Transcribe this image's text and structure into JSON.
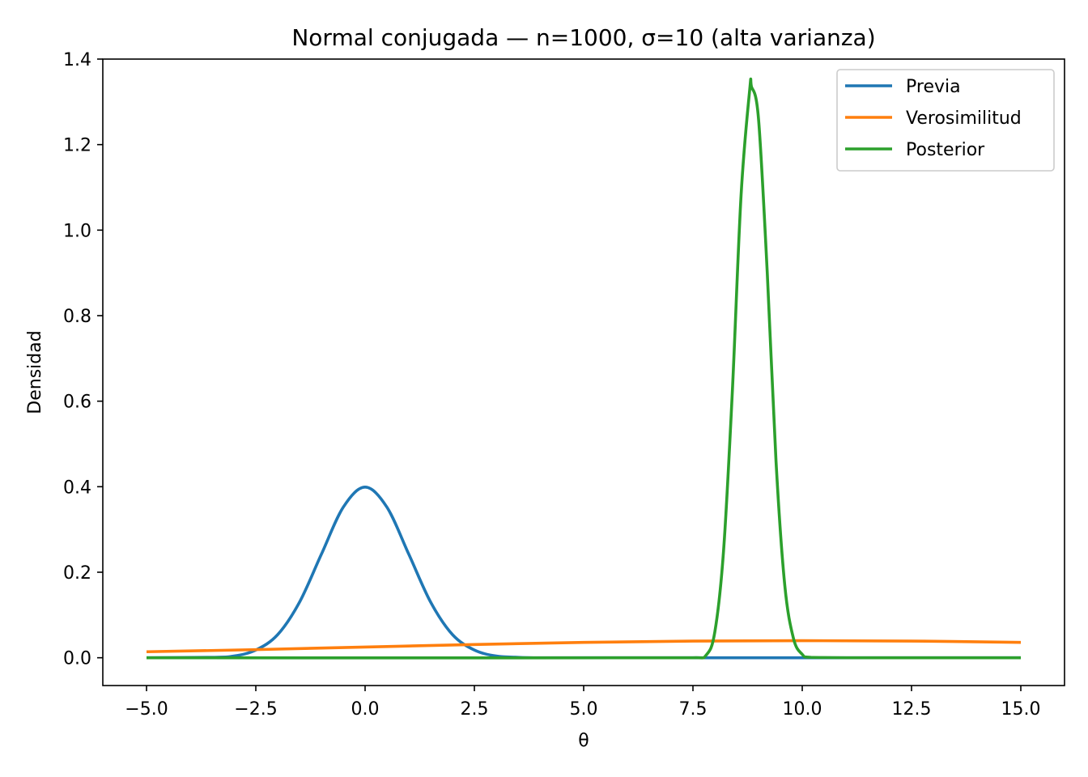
{
  "chart_data": {
    "type": "line",
    "title": "Normal conjugada — n=1000, σ=10 (alta varianza)",
    "xlabel": "θ",
    "ylabel": "Densidad",
    "xlim": [
      -6.0,
      16.0
    ],
    "ylim": [
      -0.065,
      1.4
    ],
    "xticks": [
      -5.0,
      -2.5,
      0.0,
      2.5,
      5.0,
      7.5,
      10.0,
      12.5,
      15.0
    ],
    "xtick_labels": [
      "−5.0",
      "−2.5",
      "0.0",
      "2.5",
      "5.0",
      "7.5",
      "10.0",
      "12.5",
      "15.0"
    ],
    "yticks": [
      0.0,
      0.2,
      0.4,
      0.6,
      0.8,
      1.0,
      1.2,
      1.4
    ],
    "ytick_labels": [
      "0.0",
      "0.2",
      "0.4",
      "0.6",
      "0.8",
      "1.0",
      "1.2",
      "1.4"
    ],
    "grid": false,
    "legend_position": "top-right",
    "series": [
      {
        "name": "Previa",
        "color": "#1f77b4",
        "x": [
          -5.0,
          -3.5,
          -3.0,
          -2.5,
          -2.0,
          -1.5,
          -1.0,
          -0.5,
          0.0,
          0.5,
          1.0,
          1.5,
          2.0,
          2.5,
          3.0,
          3.5,
          4.0,
          5.0,
          7.5,
          10.0,
          12.5,
          15.0
        ],
        "y": [
          0.0,
          0.001,
          0.004,
          0.018,
          0.054,
          0.13,
          0.242,
          0.352,
          0.399,
          0.352,
          0.242,
          0.13,
          0.054,
          0.018,
          0.004,
          0.001,
          0.0,
          0.0,
          0.0,
          0.0,
          0.0,
          0.0
        ]
      },
      {
        "name": "Verosimilitud",
        "color": "#ff7f0e",
        "x": [
          -5.0,
          -2.5,
          0.0,
          2.5,
          5.0,
          7.5,
          10.0,
          12.5,
          15.0
        ],
        "y": [
          0.014,
          0.019,
          0.025,
          0.031,
          0.036,
          0.039,
          0.04,
          0.039,
          0.036
        ]
      },
      {
        "name": "Posterior",
        "color": "#2ca02c",
        "x": [
          -5.0,
          7.5,
          7.8,
          8.0,
          8.2,
          8.4,
          8.6,
          8.8,
          8.84,
          9.0,
          9.2,
          9.4,
          9.6,
          9.8,
          10.0,
          10.2,
          12.5,
          15.0
        ],
        "y": [
          0.0,
          0.0,
          0.006,
          0.06,
          0.25,
          0.62,
          1.08,
          1.33,
          1.335,
          1.26,
          0.9,
          0.46,
          0.17,
          0.045,
          0.008,
          0.001,
          0.0,
          0.0
        ]
      }
    ]
  }
}
